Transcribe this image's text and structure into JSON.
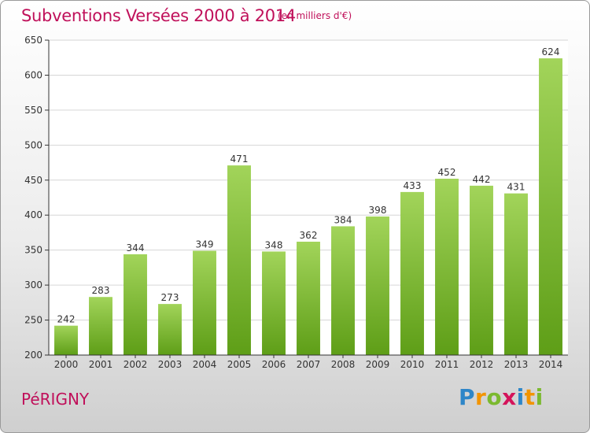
{
  "title": "Subventions Versées 2000 à 2014",
  "subtitle": "(en milliers d'€)",
  "commune": "PéRIGNY",
  "brand": {
    "letters": [
      "P",
      "r",
      "o",
      "x",
      "i",
      "t",
      "i"
    ],
    "colors": [
      "#2e86c8",
      "#f29400",
      "#7bb92f",
      "#d4145a",
      "#2e86c8",
      "#f29400",
      "#7bb92f"
    ]
  },
  "chart_data": {
    "type": "bar",
    "categories": [
      "2000",
      "2001",
      "2002",
      "2003",
      "2004",
      "2005",
      "2006",
      "2007",
      "2008",
      "2009",
      "2010",
      "2011",
      "2012",
      "2013",
      "2014"
    ],
    "values": [
      242,
      283,
      344,
      273,
      349,
      471,
      348,
      362,
      384,
      398,
      433,
      452,
      442,
      431,
      624
    ],
    "ylim": [
      200,
      650
    ],
    "yticks": [
      200,
      250,
      300,
      350,
      400,
      450,
      500,
      550,
      600,
      650
    ],
    "grid": true,
    "colors": {
      "bar_top": "#a2d45a",
      "bar_bottom": "#5e9e17",
      "grid": "#d6d6d6",
      "axis": "#333333"
    }
  }
}
